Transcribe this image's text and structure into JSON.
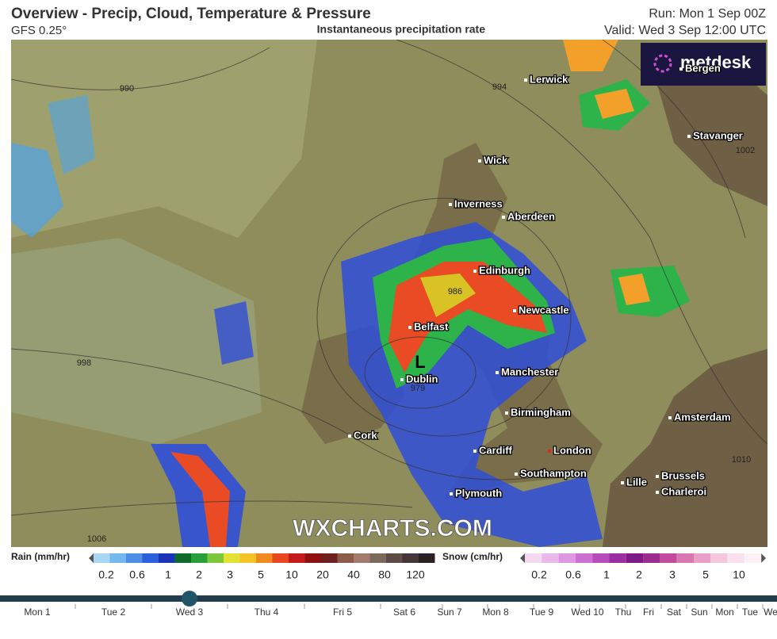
{
  "header": {
    "title": "Overview - Precip, Cloud, Temperature & Pressure",
    "model": "GFS 0.25°",
    "product": "Instantaneous precipitation rate",
    "run": "Run: Mon 1 Sep 00Z",
    "valid": "Valid: Wed 3 Sep 12:00 UTC"
  },
  "map": {
    "logo": "metdesk",
    "watermark": "WXCHARTS.COM",
    "low": "L",
    "cities": [
      "Lerwick",
      "Bergen",
      "Stavanger",
      "Wick",
      "Inverness",
      "Aberdeen",
      "Edinburgh",
      "Newcastle",
      "Belfast",
      "Dublin",
      "Manchester",
      "Birmingham",
      "Amsterdam",
      "Cork",
      "Cardiff",
      "London",
      "Southampton",
      "Lille",
      "Brussels",
      "Charleroi",
      "Plymouth"
    ],
    "isobars": [
      "990",
      "994",
      "998",
      "986",
      "979",
      "1006",
      "1010",
      "1002"
    ]
  },
  "legend": {
    "rain": {
      "label": "Rain (mm/hr)",
      "ticks": [
        0.2,
        0.6,
        1,
        2,
        3,
        5,
        10,
        20,
        40,
        80,
        120
      ]
    },
    "snow": {
      "label": "Snow (cm/hr)",
      "ticks": [
        0.2,
        0.6,
        1,
        2,
        3,
        5,
        10
      ]
    }
  },
  "timeline": {
    "days": [
      "Mon 1",
      "Tue 2",
      "Wed 3",
      "Thu 4",
      "Fri 5",
      "Sat 6",
      "Sun 7",
      "Mon 8",
      "Tue 9",
      "Wed 10",
      "Thu",
      "Fri",
      "Sat",
      "Sun",
      "Mon",
      "Tue",
      "We"
    ]
  }
}
